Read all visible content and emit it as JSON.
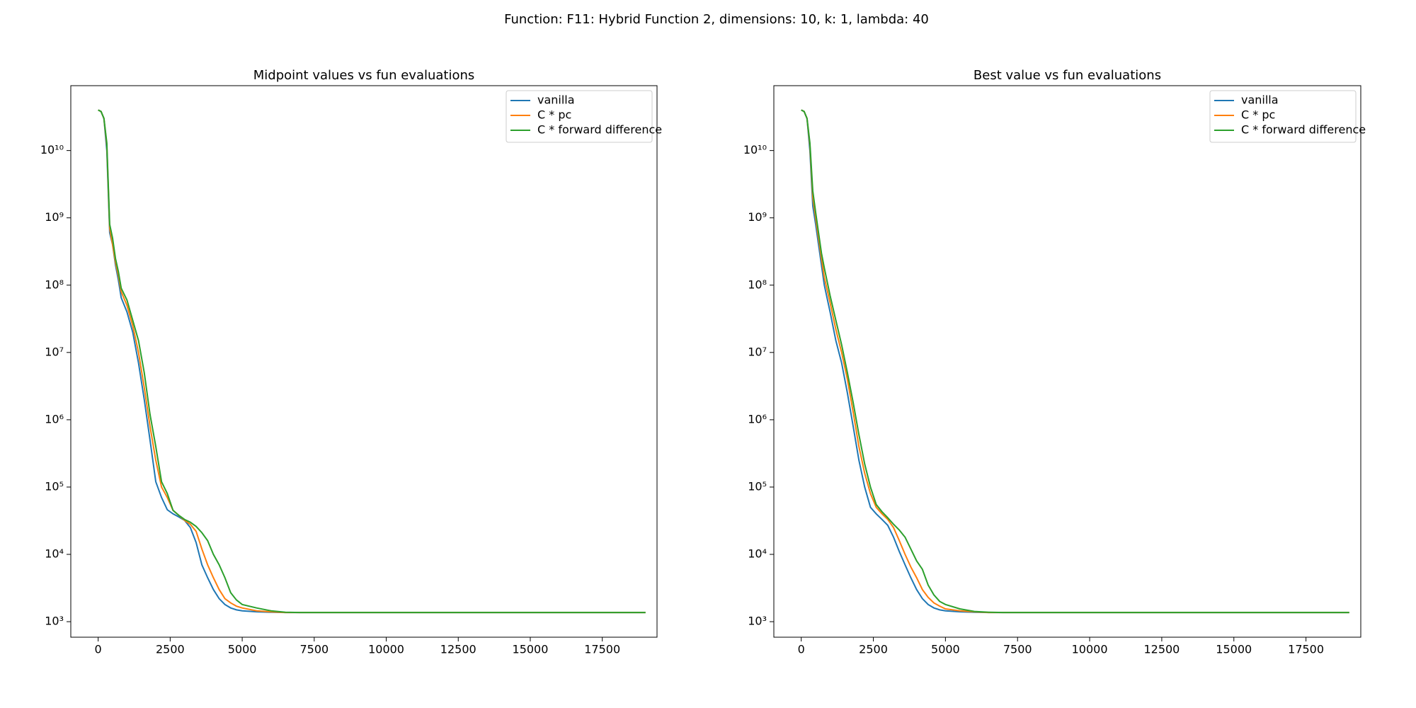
{
  "title": "Function: F11: Hybrid Function 2, dimensions: 10, k: 1, lambda: 40",
  "chart_data": [
    {
      "type": "line",
      "title": "Midpoint values vs fun evaluations",
      "log_y": true,
      "grid": false,
      "legend": "upper right",
      "xlim": [
        -950,
        19400
      ],
      "ylim": [
        588,
        92000000000.0
      ],
      "xticks": [
        0,
        2500,
        5000,
        7500,
        10000,
        12500,
        15000,
        17500
      ],
      "yticks": [
        {
          "value": 1000,
          "label": "10³"
        },
        {
          "value": 10000,
          "label": "10⁴"
        },
        {
          "value": 100000,
          "label": "10⁵"
        },
        {
          "value": 1000000,
          "label": "10⁶"
        },
        {
          "value": 10000000,
          "label": "10⁷"
        },
        {
          "value": 100000000,
          "label": "10⁸"
        },
        {
          "value": 1000000000,
          "label": "10⁹"
        },
        {
          "value": 10000000000,
          "label": "10¹⁰"
        }
      ],
      "x": [
        0,
        100,
        200,
        300,
        400,
        500,
        600,
        700,
        800,
        1000,
        1200,
        1400,
        1600,
        1800,
        2000,
        2200,
        2400,
        2600,
        2800,
        3000,
        3200,
        3400,
        3600,
        3800,
        4000,
        4200,
        4400,
        4600,
        4800,
        5000,
        5500,
        6000,
        6500,
        7000,
        10000,
        13000,
        16000,
        19000
      ],
      "series": [
        {
          "name": "vanilla",
          "color": "#1f77b4",
          "values": [
            40000000000.0,
            38000000000.0,
            30000000000.0,
            10000000000.0,
            600000000.0,
            400000000.0,
            200000000.0,
            120000000.0,
            65000000.0,
            40000000.0,
            20000000.0,
            7000000.0,
            2000000.0,
            500000.0,
            120000.0,
            70000.0,
            46000.0,
            40000.0,
            36000.0,
            32000.0,
            25000.0,
            15000.0,
            7000.0,
            4500.0,
            3000.0,
            2200.0,
            1800.0,
            1600.0,
            1500.0,
            1450.0,
            1400.0,
            1380.0,
            1370.0,
            1370.0,
            1370.0,
            1370.0,
            1370.0,
            1370.0
          ]
        },
        {
          "name": "C * pc",
          "color": "#ff7f0e",
          "values": [
            40000000000.0,
            38000000000.0,
            30000000000.0,
            12000000000.0,
            700000000.0,
            400000000.0,
            220000000.0,
            140000000.0,
            80000000.0,
            50000000.0,
            25000000.0,
            10000000.0,
            3000000.0,
            800000.0,
            250000.0,
            100000.0,
            70000.0,
            45000.0,
            38000.0,
            32000.0,
            28000.0,
            22000.0,
            12000.0,
            7000.0,
            4500.0,
            3000.0,
            2200.0,
            1900.0,
            1700.0,
            1600.0,
            1450.0,
            1400.0,
            1370.0,
            1370.0,
            1370.0,
            1370.0,
            1370.0,
            1370.0
          ]
        },
        {
          "name": "C * forward difference",
          "color": "#2ca02c",
          "values": [
            40000000000.0,
            38000000000.0,
            30000000000.0,
            13000000000.0,
            800000000.0,
            500000000.0,
            250000000.0,
            160000000.0,
            90000000.0,
            60000000.0,
            30000000.0,
            15000000.0,
            5000000.0,
            1200000.0,
            400000.0,
            120000.0,
            80000.0,
            45000.0,
            38000.0,
            33000.0,
            30000.0,
            26000.0,
            21000.0,
            16000.0,
            10000.0,
            7000.0,
            4500.0,
            2700.0,
            2100.0,
            1800.0,
            1600.0,
            1450.0,
            1380.0,
            1370.0,
            1370.0,
            1370.0,
            1370.0,
            1370.0
          ]
        }
      ]
    },
    {
      "type": "line",
      "title": "Best value vs fun evaluations",
      "log_y": true,
      "grid": false,
      "legend": "upper right",
      "xlim": [
        -950,
        19400
      ],
      "ylim": [
        588,
        92000000000.0
      ],
      "xticks": [
        0,
        2500,
        5000,
        7500,
        10000,
        12500,
        15000,
        17500
      ],
      "yticks": [
        {
          "value": 1000,
          "label": "10³"
        },
        {
          "value": 10000,
          "label": "10⁴"
        },
        {
          "value": 100000,
          "label": "10⁵"
        },
        {
          "value": 1000000,
          "label": "10⁶"
        },
        {
          "value": 10000000,
          "label": "10⁷"
        },
        {
          "value": 100000000,
          "label": "10⁸"
        },
        {
          "value": 1000000000,
          "label": "10⁹"
        },
        {
          "value": 10000000000,
          "label": "10¹⁰"
        }
      ],
      "x": [
        0,
        100,
        200,
        300,
        400,
        500,
        600,
        700,
        800,
        1000,
        1200,
        1400,
        1600,
        1800,
        2000,
        2200,
        2400,
        2600,
        2800,
        3000,
        3200,
        3400,
        3600,
        3800,
        4000,
        4200,
        4400,
        4600,
        4800,
        5000,
        5500,
        6000,
        6500,
        7000,
        10000,
        13000,
        16000,
        19000
      ],
      "series": [
        {
          "name": "vanilla",
          "color": "#1f77b4",
          "values": [
            40000000000.0,
            38000000000.0,
            30000000000.0,
            10000000000.0,
            1500000000.0,
            800000000.0,
            400000000.0,
            200000000.0,
            100000000.0,
            40000000.0,
            15000000.0,
            7000000.0,
            2500000.0,
            800000.0,
            250000.0,
            100000.0,
            50000.0,
            40000.0,
            33000.0,
            27000.0,
            18000.0,
            11000.0,
            7000.0,
            4500.0,
            3000.0,
            2200.0,
            1800.0,
            1600.0,
            1500.0,
            1450.0,
            1400.0,
            1380.0,
            1370.0,
            1370.0,
            1370.0,
            1370.0,
            1370.0,
            1370.0
          ]
        },
        {
          "name": "C * pc",
          "color": "#ff7f0e",
          "values": [
            40000000000.0,
            38000000000.0,
            30000000000.0,
            12000000000.0,
            2000000000.0,
            1000000000.0,
            500000000.0,
            250000000.0,
            130000000.0,
            55000000.0,
            22000000.0,
            10000000.0,
            4000000.0,
            1300000.0,
            400000.0,
            160000.0,
            80000.0,
            50000.0,
            40000.0,
            33000.0,
            25000.0,
            16000.0,
            10000.0,
            6500.0,
            4500.0,
            3000.0,
            2300.0,
            1900.0,
            1700.0,
            1550.0,
            1450.0,
            1400.0,
            1370.0,
            1370.0,
            1370.0,
            1370.0,
            1370.0,
            1370.0
          ]
        },
        {
          "name": "C * forward difference",
          "color": "#2ca02c",
          "values": [
            40000000000.0,
            38000000000.0,
            30000000000.0,
            13000000000.0,
            2500000000.0,
            1200000000.0,
            600000000.0,
            300000000.0,
            180000000.0,
            70000000.0,
            30000000.0,
            13000000.0,
            5000000.0,
            1800000.0,
            600000.0,
            220000.0,
            100000.0,
            55000.0,
            43000.0,
            35000.0,
            28000.0,
            23000.0,
            18000.0,
            12000.0,
            8000.0,
            6000.0,
            3500.0,
            2500.0,
            2000.0,
            1800.0,
            1550.0,
            1420.0,
            1380.0,
            1370.0,
            1370.0,
            1370.0,
            1370.0,
            1370.0
          ]
        }
      ]
    }
  ]
}
